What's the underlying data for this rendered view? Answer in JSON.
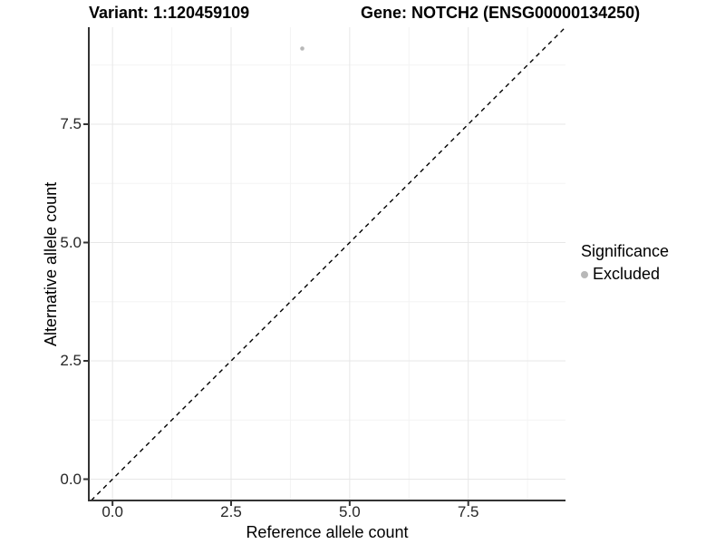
{
  "figure": {
    "title_left": "Variant: 1:120459109",
    "title_right": "Gene: NOTCH2 (ENSG00000134250)"
  },
  "axes": {
    "x_label": "Reference allele count",
    "y_label": "Alternative allele count"
  },
  "legend": {
    "title": "Significance",
    "items": [
      {
        "label": "Excluded",
        "color": "#b8b8b8"
      }
    ]
  },
  "colors": {
    "background": "#ffffff",
    "point": "#b8b8b8",
    "axis_line": "#333333",
    "grid_major": "#e7e7e7",
    "grid_minor": "#f4f4f4",
    "reference_line": "#000000",
    "tick_text": "#262626",
    "title_text": "#000000"
  },
  "chart_data": {
    "type": "scatter",
    "title": "Variant: 1:120459109 | Gene: NOTCH2 (ENSG00000134250)",
    "xlabel": "Reference allele count",
    "ylabel": "Alternative allele count",
    "xlim": [
      -0.5,
      9.55
    ],
    "ylim": [
      -0.45,
      9.55
    ],
    "x_ticks": [
      0.0,
      2.5,
      5.0,
      7.5
    ],
    "x_tick_labels": [
      "0.0",
      "2.5",
      "5.0",
      "7.5"
    ],
    "y_ticks": [
      0.0,
      2.5,
      5.0,
      7.5
    ],
    "y_tick_labels": [
      "0.0",
      "2.5",
      "5.0",
      "7.5"
    ],
    "x_minor_ticks": [
      1.25,
      3.75,
      6.25,
      8.75
    ],
    "y_minor_ticks": [
      1.25,
      3.75,
      6.25,
      8.75
    ],
    "grid": "major+minor",
    "legend_position": "right",
    "legend_title": "Significance",
    "series": [
      {
        "name": "Excluded",
        "color": "#b8b8b8",
        "point_radius_px": 2.3,
        "points": [
          {
            "x": 4.0,
            "y": 9.1
          }
        ]
      }
    ],
    "reference_line": {
      "slope": 1,
      "intercept": 0,
      "style": "dashed",
      "color": "#000000"
    }
  }
}
